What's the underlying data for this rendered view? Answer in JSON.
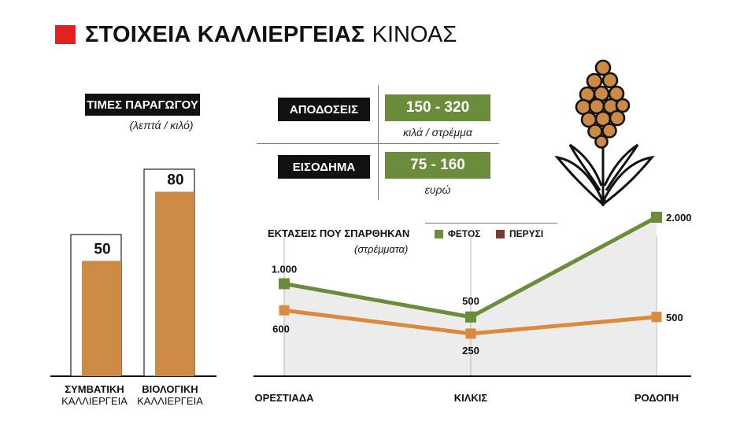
{
  "header": {
    "title_bold": "ΣΤΟΙΧΕΙΑ ΚΑΛΛΙΕΡΓΕΙΑΣ",
    "title_light": "ΚΙΝΟΑΣ"
  },
  "colors": {
    "accent_red": "#e3211f",
    "bar_orange": "#cc8a44",
    "green": "#6b8c3a",
    "line_orange": "#d98a3f",
    "legend_brown": "#7a3b2e"
  },
  "prices": {
    "label": "ΤΙΜΕΣ ΠΑΡΑΓΩΓΟΥ",
    "unit": "(λεπτά / κιλό)"
  },
  "stats": {
    "yield_label": "ΑΠΟΔΟΣΕΙΣ",
    "yield_value": "150 - 320",
    "yield_unit": "κιλά / στρέμμα",
    "income_label": "ΕΙΣΟΔΗΜΑ",
    "income_value": "75 - 160",
    "income_unit": "ευρώ"
  },
  "areas": {
    "label": "ΕΚΤΑΣΕΙΣ ΠΟΥ ΣΠΑΡΘΗΚΑΝ",
    "unit": "(στρέμματα)"
  },
  "chart_data": [
    {
      "type": "bar",
      "title": "ΤΙΜΕΣ ΠΑΡΑΓΩΓΟΥ",
      "subtitle": "(λεπτά / κιλό)",
      "categories": [
        {
          "line1": "ΣΥΜΒΑΤΙΚΗ",
          "line2": "ΚΑΛΛΙΕΡΓΕΙΑ"
        },
        {
          "line1": "ΒΙΟΛΟΓΙΚΗ",
          "line2": "ΚΑΛΛΙΕΡΓΕΙΑ"
        }
      ],
      "values": [
        50,
        80
      ],
      "value_labels": [
        "50",
        "80"
      ],
      "ylim": [
        0,
        100
      ],
      "grid": false
    },
    {
      "type": "line",
      "title": "ΕΚΤΑΣΕΙΣ ΠΟΥ ΣΠΑΡΘΗΚΑΝ",
      "subtitle": "(στρέμματα)",
      "categories": [
        "ΟΡΕΣΤΙΑΔΑ",
        "ΚΙΛΚΙΣ",
        "ΡΟΔΟΠΗ"
      ],
      "series": [
        {
          "name": "ΦΕΤΟΣ",
          "values": [
            1000,
            500,
            2000
          ],
          "labels": [
            "1.000",
            "500",
            "2.000"
          ],
          "color": "#6b8c3a"
        },
        {
          "name": "ΠΕΡΥΣΙ",
          "values": [
            600,
            250,
            500
          ],
          "labels": [
            "600",
            "250",
            "500"
          ],
          "color": "#d98a3f",
          "legend_color": "#7a3b2e"
        }
      ],
      "ylim": [
        0,
        2000
      ],
      "legend": "top",
      "grid": false
    }
  ]
}
